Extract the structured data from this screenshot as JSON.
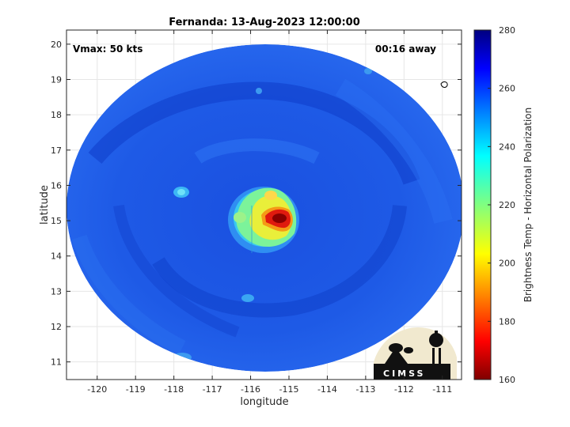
{
  "title": "Fernanda: 13-Aug-2023 12:00:00",
  "vmax_text": "Vmax: 50 kts",
  "time_away_text": "00:16 away",
  "xlabel": "longitude",
  "ylabel": "latitude",
  "colorbar_label": "Brightness Temp - Horizontal Polarization",
  "logo_text": "CIMSS",
  "colors": {
    "background_blue": "#1f5ee8",
    "deep_blue": "#0a2fb8",
    "cyan": "#35d7f0",
    "yellow": "#f2e53a",
    "red": "#d4120e",
    "dark_red": "#7a0000"
  },
  "chart_data": {
    "type": "heatmap",
    "title": "Fernanda: 13-Aug-2023 12:00:00",
    "xlabel": "longitude",
    "ylabel": "latitude",
    "xlim": [
      -120.8,
      -110.5
    ],
    "ylim": [
      10.5,
      20.4
    ],
    "x_ticks": [
      -120,
      -119,
      -118,
      -117,
      -116,
      -115,
      -114,
      -113,
      -112,
      -111
    ],
    "y_ticks": [
      11,
      12,
      13,
      14,
      15,
      16,
      17,
      18,
      19,
      20
    ],
    "x_tick_labels": [
      "-120",
      "-119",
      "-118",
      "-117",
      "-116",
      "-115",
      "-114",
      "-113",
      "-112",
      "-111"
    ],
    "y_tick_labels": [
      "11",
      "12",
      "13",
      "14",
      "15",
      "16",
      "17",
      "18",
      "19",
      "20"
    ],
    "grid": true,
    "colorbar": {
      "label": "Brightness Temp - Horizontal Polarization",
      "range": [
        160,
        280
      ],
      "ticks": [
        160,
        180,
        200,
        220,
        240,
        260,
        280
      ],
      "tick_labels": [
        "160",
        "180",
        "200",
        "220",
        "240",
        "260",
        "280"
      ],
      "colormap": "jet"
    },
    "swath_center": [
      -115.6,
      15.3
    ],
    "storm_center": [
      -115.5,
      15.2
    ],
    "annotations": [
      "Vmax: 50 kts",
      "00:16 away"
    ]
  }
}
